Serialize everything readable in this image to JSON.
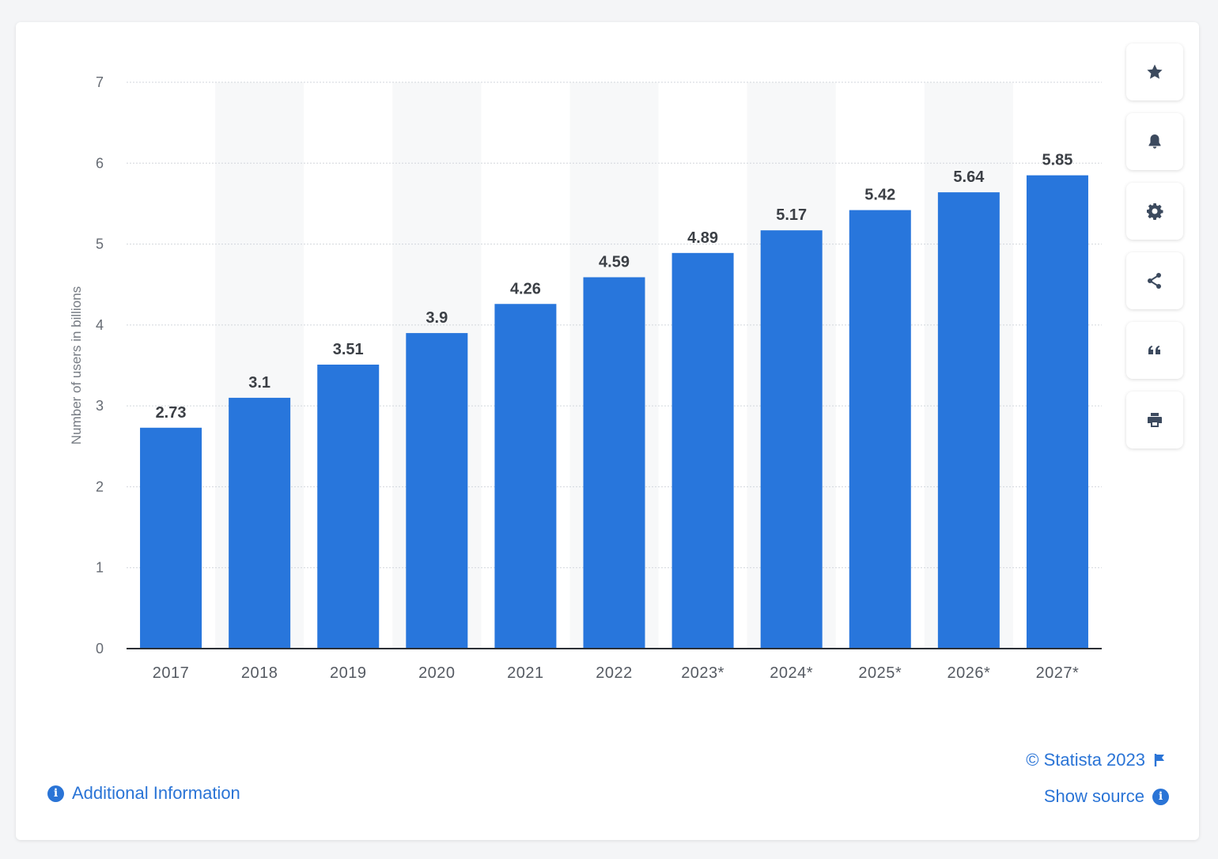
{
  "chart_data": {
    "type": "bar",
    "categories": [
      "2017",
      "2018",
      "2019",
      "2020",
      "2021",
      "2022",
      "2023*",
      "2024*",
      "2025*",
      "2026*",
      "2027*"
    ],
    "values": [
      2.73,
      3.1,
      3.51,
      3.9,
      4.26,
      4.59,
      4.89,
      5.17,
      5.42,
      5.64,
      5.85
    ],
    "value_labels": [
      "2.73",
      "3.1",
      "3.51",
      "3.9",
      "4.26",
      "4.59",
      "4.89",
      "5.17",
      "5.42",
      "5.64",
      "5.85"
    ],
    "ylabel": "Number of users in billions",
    "ylim": [
      0,
      7
    ],
    "yticks": [
      0,
      1,
      2,
      3,
      4,
      5,
      6,
      7
    ],
    "grid": true,
    "bar_color": "#2876dc"
  },
  "toolbar": {
    "buttons": [
      "star-icon",
      "bell-icon",
      "gear-icon",
      "share-icon",
      "quote-icon",
      "print-icon"
    ]
  },
  "footer": {
    "additional_info": "Additional Information",
    "copyright": "© Statista 2023",
    "show_source": "Show source"
  },
  "colors": {
    "accent": "#2a74d6",
    "icon": "#3c4a5e"
  }
}
